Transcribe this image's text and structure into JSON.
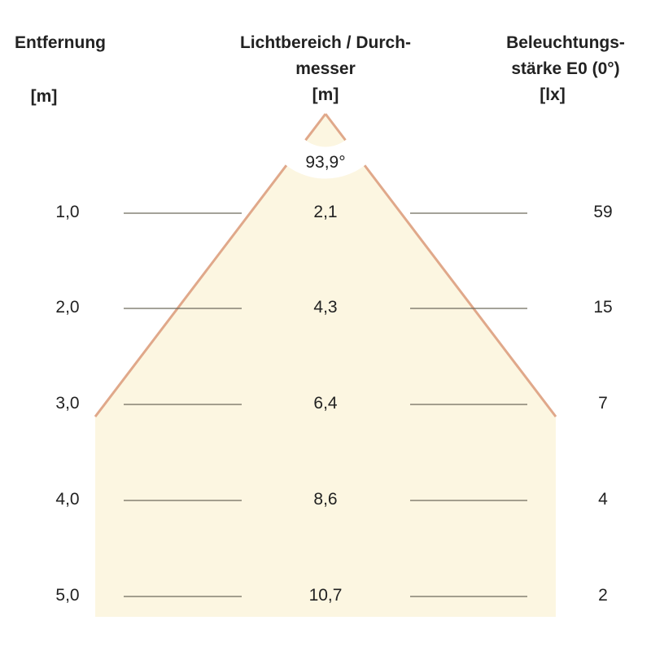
{
  "headers": {
    "distance": {
      "title": "Entfernung",
      "unit": "[m]"
    },
    "diameter": {
      "title_line1": "Lichtbereich / Durch-",
      "title_line2": "messer",
      "unit": "[m]"
    },
    "illuminance": {
      "title_line1": "Beleuchtungs-",
      "title_line2": "stärke E0 (0°)",
      "unit": "[lx]"
    }
  },
  "beam_angle": "93,9°",
  "rows": [
    {
      "distance": "1,0",
      "diameter": "2,1",
      "illuminance": "59"
    },
    {
      "distance": "2,0",
      "diameter": "4,3",
      "illuminance": "15"
    },
    {
      "distance": "3,0",
      "diameter": "6,4",
      "illuminance": "7"
    },
    {
      "distance": "4,0",
      "diameter": "8,6",
      "illuminance": "4"
    },
    {
      "distance": "5,0",
      "diameter": "10,7",
      "illuminance": "2"
    }
  ],
  "colors": {
    "cone_fill": "#fcf6e1",
    "cone_edge": "#e0a88a",
    "line": "#6e6a5c"
  }
}
